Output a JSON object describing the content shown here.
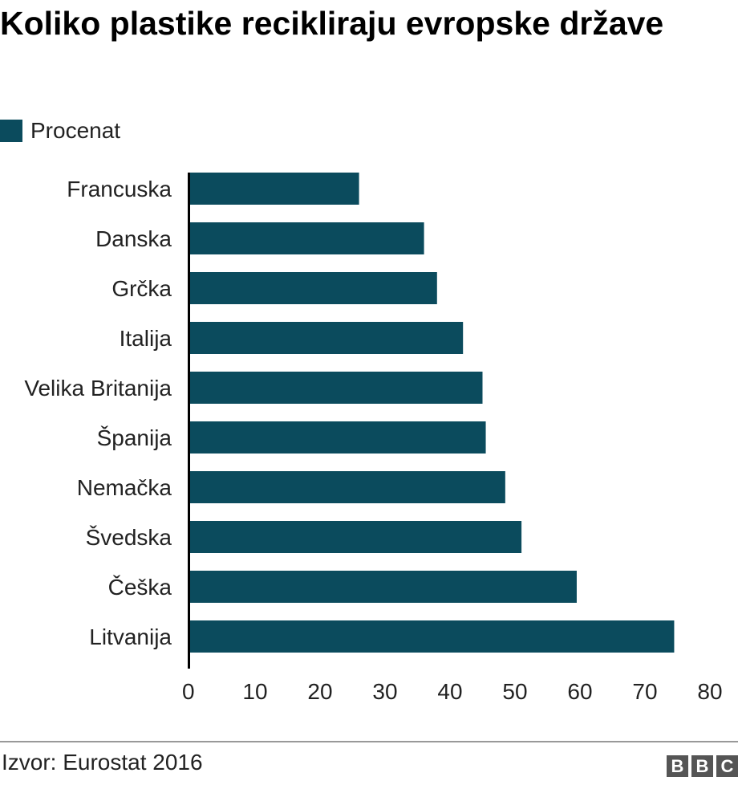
{
  "title": "Koliko plastike recikliraju evropske države",
  "legend": {
    "label": "Procenat"
  },
  "source": "Izvor: Eurostat 2016",
  "logo": {
    "letters": [
      "B",
      "B",
      "C"
    ]
  },
  "colors": {
    "bar": "#0b4b5d",
    "axis": "#000000",
    "text": "#222222"
  },
  "chart_data": {
    "type": "bar",
    "orientation": "horizontal",
    "categories": [
      "Francuska",
      "Danska",
      "Grčka",
      "Italija",
      "Velika Britanija",
      "Španija",
      "Nemačka",
      "Švedska",
      "Češka",
      "Litvanija"
    ],
    "series": [
      {
        "name": "Procenat",
        "values": [
          26,
          36,
          38,
          42,
          45,
          45.5,
          48.5,
          51,
          59.5,
          74.5
        ]
      }
    ],
    "xlim": [
      0,
      80
    ],
    "xticks": [
      0,
      10,
      20,
      30,
      40,
      50,
      60,
      70,
      80
    ],
    "grid": false,
    "legend_position": "top-left"
  }
}
